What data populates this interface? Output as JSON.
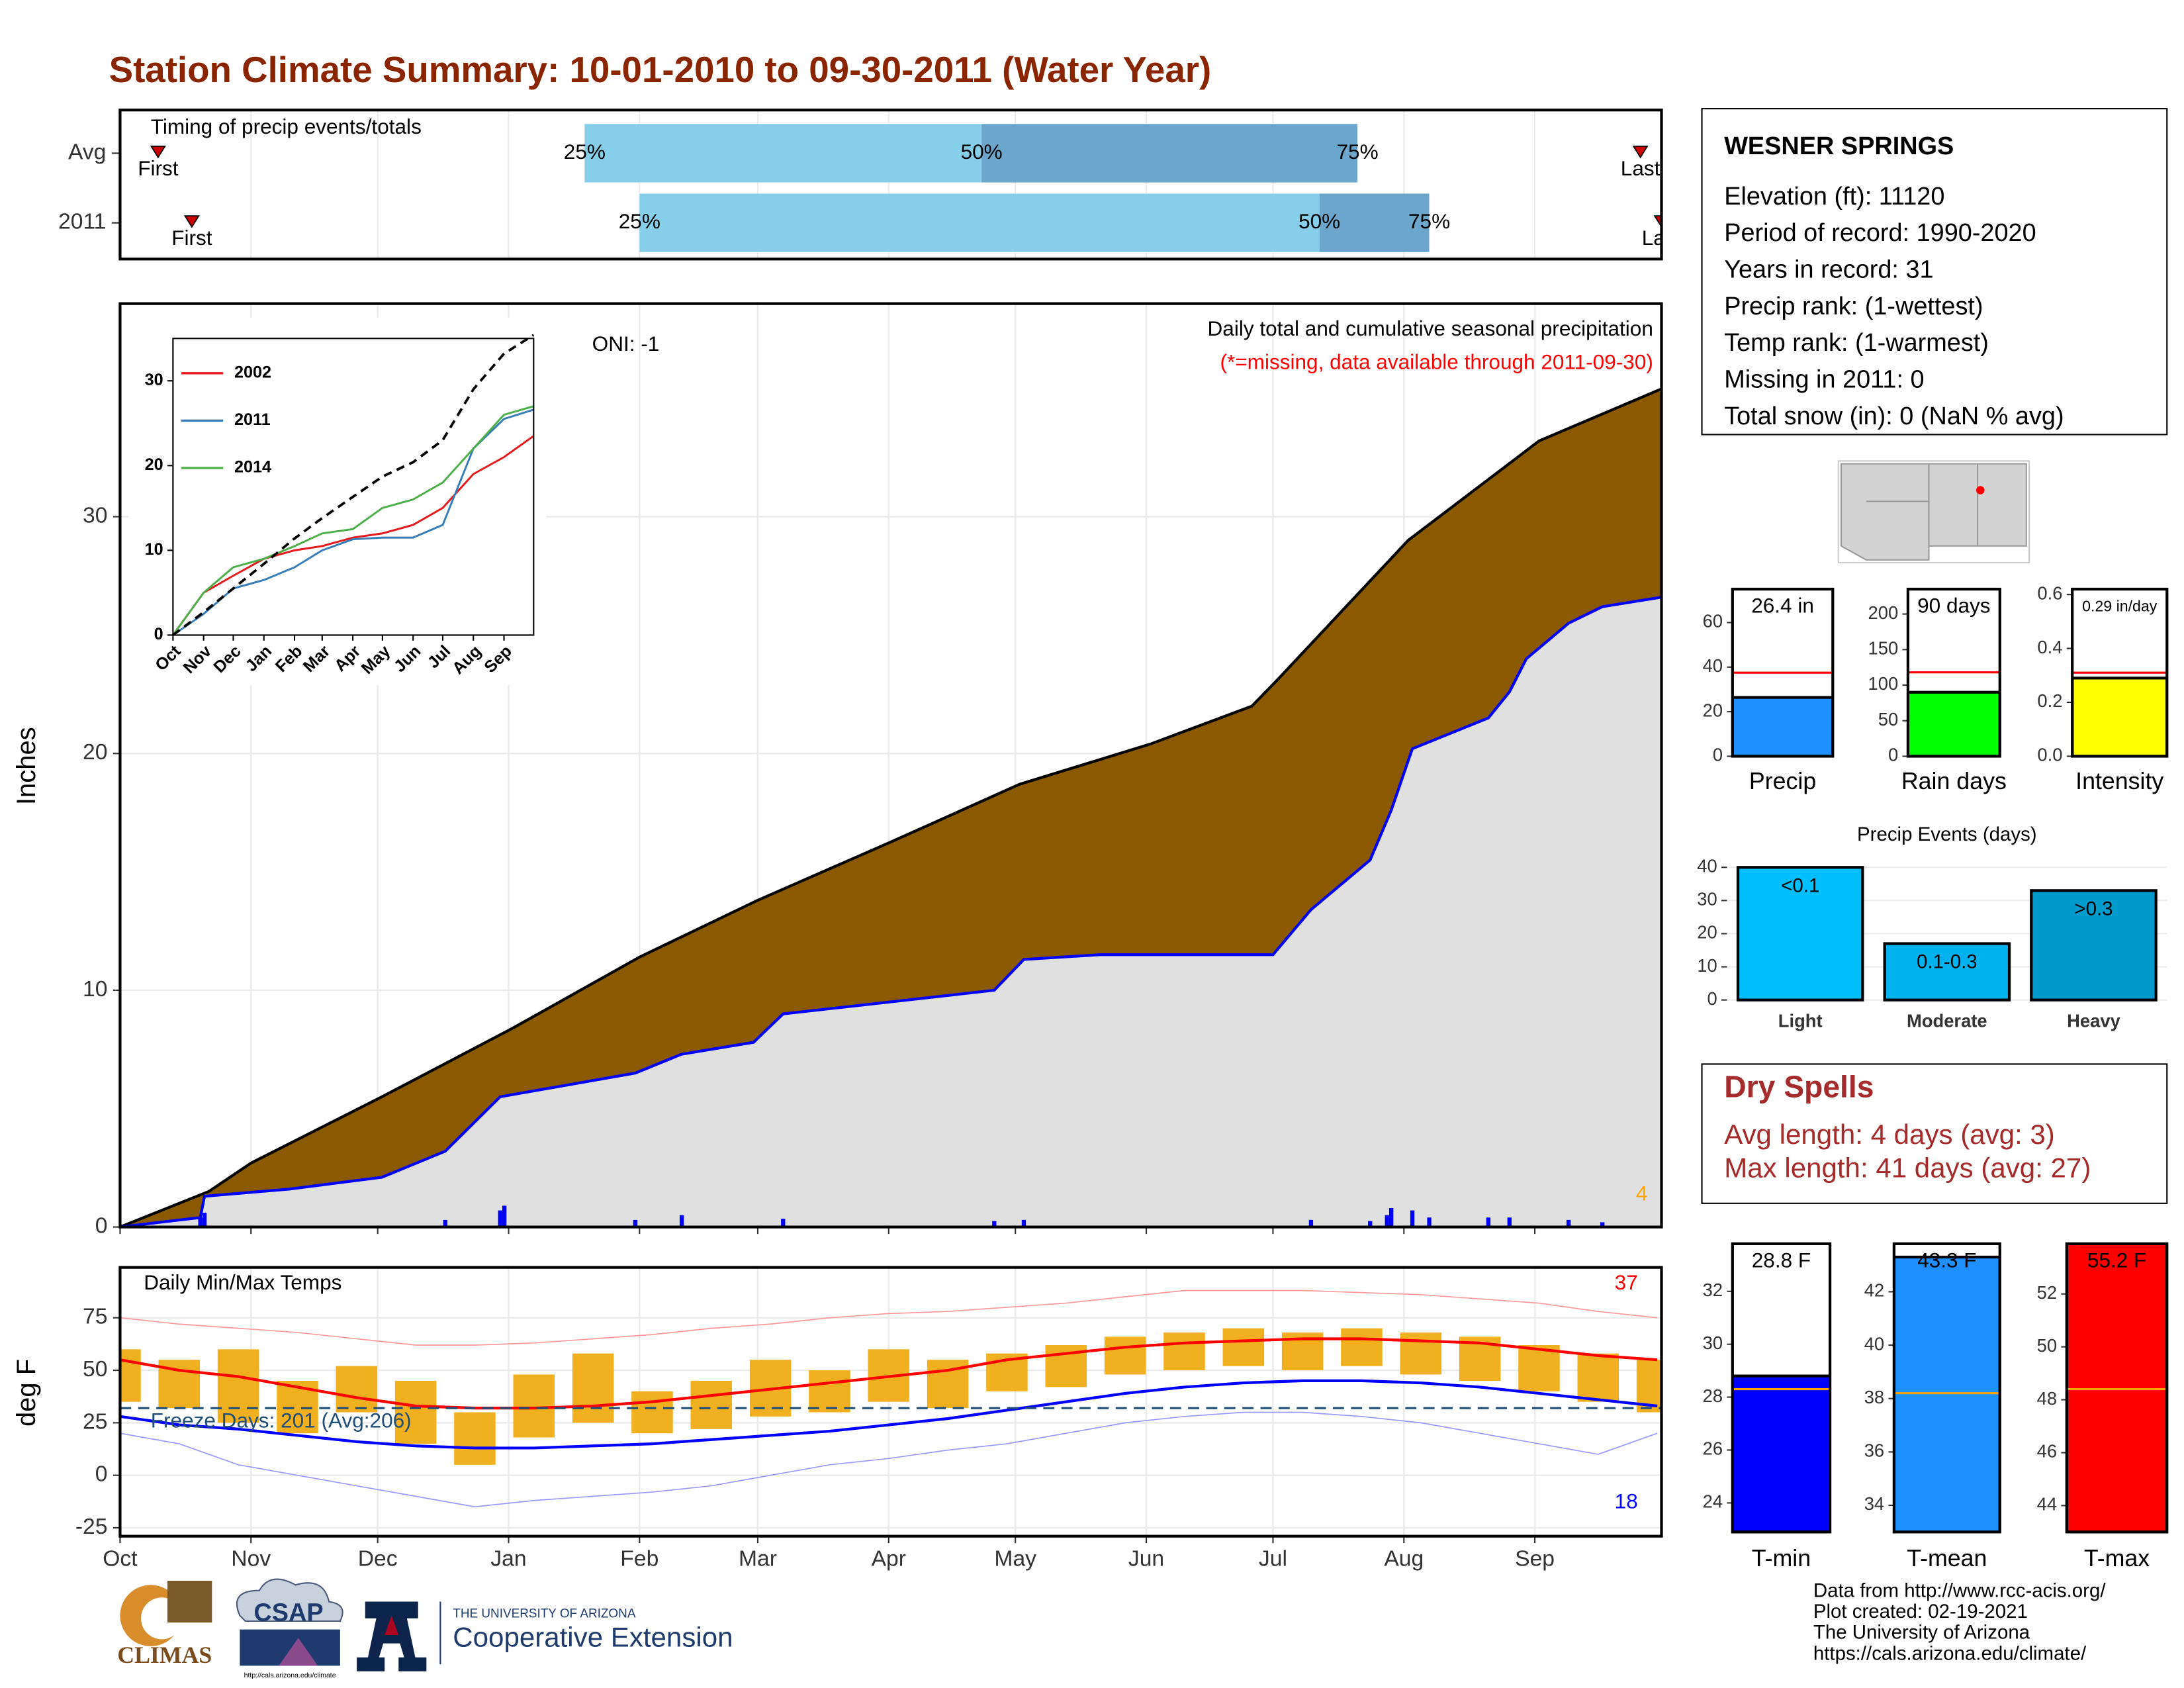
{
  "title": "Station Climate Summary: 10-01-2010 to 09-30-2011 (Water Year)",
  "station_info": {
    "name": "WESNER SPRINGS",
    "lines": [
      "Elevation (ft): 11120",
      "Period of record: 1990-2020",
      "Years in record: 31",
      "Precip rank:  (1-wettest)",
      "Temp rank:  (1-warmest)",
      "Missing in 2011: 0",
      "Total snow (in): 0 (NaN % avg)"
    ]
  },
  "dry_spells": {
    "title": "Dry Spells",
    "lines": [
      "Avg length: 4 days (avg: 3)",
      "Max length: 41 days (avg: 27)"
    ]
  },
  "credits": [
    "Data from http://www.rcc-acis.org/",
    "Plot created: 02-19-2021",
    "The University of Arizona",
    "https://cals.arizona.edu/climate/"
  ],
  "logos": {
    "climas": "CLIMAS",
    "csap": "CSAP",
    "csap_url": "http://cals.arizona.edu/climate",
    "ua": "THE UNIVERSITY OF ARIZONA",
    "extension": "Cooperative Extension"
  },
  "chart_data": [
    {
      "type": "timing",
      "title": "Timing of precip events/totals",
      "categories": [
        "Avg",
        "2011"
      ],
      "xlim": [
        0,
        365
      ],
      "first": [
        9,
        17
      ],
      "first_labels": [
        "First",
        "First"
      ],
      "last": [
        360,
        365
      ],
      "last_labels": [
        "Last",
        "Last"
      ],
      "quartiles": [
        [
          110,
          204,
          293
        ],
        [
          123,
          284,
          310
        ]
      ],
      "quartile_labels": [
        "25%",
        "50%",
        "75%"
      ],
      "bar_colors": [
        "#87ceeb",
        "#6ca6cd"
      ],
      "marker_color": "#cc0000"
    },
    {
      "type": "area",
      "ylabel": "Inches",
      "xlim": [
        0,
        365
      ],
      "ylim": [
        0,
        39
      ],
      "yticks": [
        0,
        10,
        20,
        30
      ],
      "grid": true,
      "annotations": [
        {
          "text": "ONI: -1",
          "color": "#000000"
        },
        {
          "text": "Daily total and cumulative seasonal precipitation",
          "color": "#000000"
        },
        {
          "text": "(*=missing, data available through 2011-09-30)",
          "color": "#ff0000"
        },
        {
          "text": "4",
          "color": "#ffa500"
        }
      ],
      "series": [
        {
          "style": "area",
          "color": "#8b5a00",
          "line_color": "#000000",
          "x": [
            0,
            21,
            31,
            62,
            93,
            123,
            151,
            183,
            213,
            244,
            268,
            274,
            305,
            336,
            365
          ],
          "values": [
            0,
            1.5,
            2.7,
            5.5,
            8.4,
            11.4,
            13.8,
            16.3,
            18.7,
            20.4,
            22.0,
            23.1,
            29.0,
            33.2,
            35.4
          ]
        },
        {
          "style": "area",
          "color": "#e0e0e0",
          "line_color": "#0000ff",
          "x": [
            0,
            19,
            20,
            40,
            62,
            77,
            90,
            122,
            133,
            150,
            157,
            207,
            214,
            232,
            273,
            282,
            296,
            301,
            306,
            324,
            329,
            333,
            343,
            351,
            365
          ],
          "values": [
            0,
            0.4,
            1.3,
            1.6,
            2.1,
            3.2,
            5.5,
            6.5,
            7.3,
            7.8,
            9.0,
            10.0,
            11.3,
            11.5,
            11.5,
            13.4,
            15.5,
            17.6,
            20.2,
            21.5,
            22.6,
            24.0,
            25.5,
            26.2,
            26.6
          ]
        },
        {
          "style": "bar",
          "color": "#0000ff",
          "x": [
            19,
            20,
            77,
            90,
            91,
            122,
            133,
            157,
            207,
            214,
            282,
            296,
            300,
            301,
            306,
            310,
            324,
            329,
            343,
            351
          ],
          "values": [
            0.4,
            0.6,
            0.3,
            0.7,
            0.9,
            0.3,
            0.5,
            0.35,
            0.25,
            0.3,
            0.3,
            0.25,
            0.5,
            0.8,
            0.7,
            0.4,
            0.4,
            0.4,
            0.3,
            0.2
          ]
        }
      ]
    },
    {
      "type": "line",
      "xlim": [
        0,
        365
      ],
      "ylim": [
        0,
        35
      ],
      "yticks": [
        0,
        10,
        20,
        30
      ],
      "legend": "top-left",
      "xticks": [
        {
          "value": 0,
          "label": "Oct"
        },
        {
          "value": 31,
          "label": "Nov"
        },
        {
          "value": 61,
          "label": "Dec"
        },
        {
          "value": 92,
          "label": "Jan"
        },
        {
          "value": 123,
          "label": "Feb"
        },
        {
          "value": 151,
          "label": "Mar"
        },
        {
          "value": 182,
          "label": "Apr"
        },
        {
          "value": 212,
          "label": "May"
        },
        {
          "value": 243,
          "label": "Jun"
        },
        {
          "value": 273,
          "label": "Jul"
        },
        {
          "value": 304,
          "label": "Aug"
        },
        {
          "value": 335,
          "label": "Sep"
        }
      ],
      "series": [
        {
          "name": "2002",
          "color": "#e41a1c",
          "x": [
            0,
            31,
            61,
            92,
            123,
            151,
            182,
            212,
            243,
            273,
            304,
            335,
            365
          ],
          "values": [
            0,
            5,
            7,
            9,
            10,
            10.5,
            11.5,
            12,
            13,
            15,
            19,
            21,
            23.5
          ]
        },
        {
          "name": "2011",
          "color": "#377eb8",
          "x": [
            0,
            31,
            61,
            92,
            123,
            151,
            182,
            212,
            243,
            273,
            304,
            335,
            365
          ],
          "values": [
            0,
            2.5,
            5.5,
            6.5,
            8,
            10,
            11.3,
            11.5,
            11.5,
            13,
            22,
            25.5,
            26.6
          ]
        },
        {
          "name": "2014",
          "color": "#4daf4a",
          "x": [
            0,
            31,
            61,
            92,
            123,
            151,
            182,
            212,
            243,
            273,
            304,
            335,
            365
          ],
          "values": [
            0,
            5,
            8,
            9,
            10.5,
            12,
            12.5,
            15,
            16,
            18,
            22,
            26,
            27
          ]
        },
        {
          "color": "#000000",
          "dash": true,
          "x": [
            0,
            31,
            61,
            92,
            123,
            151,
            182,
            212,
            243,
            273,
            304,
            335,
            365
          ],
          "values": [
            0,
            2.7,
            5.5,
            8.4,
            11.4,
            13.8,
            16.3,
            18.7,
            20.4,
            23,
            29,
            33.2,
            35.4
          ]
        }
      ]
    },
    {
      "type": "bar",
      "categories": [
        "Precip"
      ],
      "values": [
        26.4
      ],
      "value_labels": [
        "26.4 in"
      ],
      "color": "#1e90ff",
      "reference": 37.5,
      "reference_color": "#ff0000",
      "ylim": [
        0,
        75
      ],
      "yticks": [
        0,
        20,
        40,
        60
      ]
    },
    {
      "type": "bar",
      "categories": [
        "Rain days"
      ],
      "values": [
        90
      ],
      "value_labels": [
        "90 days"
      ],
      "color": "#00ff00",
      "reference": 118,
      "reference_color": "#ff0000",
      "ylim": [
        0,
        235
      ],
      "yticks": [
        0,
        50,
        100,
        150,
        200
      ]
    },
    {
      "type": "bar",
      "categories": [
        "Intensity"
      ],
      "values": [
        0.29
      ],
      "value_labels": [
        "0.29 in/day"
      ],
      "color": "#ffff00",
      "reference": 0.31,
      "reference_color": "#ff0000",
      "ylim": [
        0,
        0.62
      ],
      "yticks": [
        {
          "value": 0,
          "label": "0.0"
        },
        0.2,
        0.4,
        0.6
      ]
    },
    {
      "type": "bar",
      "title": "Precip Events (days)",
      "categories": [
        "Light",
        "Moderate",
        "Heavy"
      ],
      "values": [
        40,
        17,
        33
      ],
      "bar_labels": [
        "<0.1",
        "0.1-0.3",
        ">0.3"
      ],
      "colors": [
        "#00bfff",
        "#00b2ee",
        "#009acd"
      ],
      "ylim": [
        0,
        42
      ],
      "yticks": [
        0,
        10,
        20,
        30,
        40
      ],
      "grid": true
    },
    {
      "type": "bar",
      "categories": [
        "T-min"
      ],
      "values": [
        28.8
      ],
      "value_labels": [
        "28.8 F"
      ],
      "color": "#0000ff",
      "reference": 28.3,
      "reference_color": "#ffa500",
      "ylim": [
        22.9,
        33.8
      ],
      "yticks": [
        24,
        26,
        28,
        30,
        32
      ]
    },
    {
      "type": "bar",
      "categories": [
        "T-mean"
      ],
      "values": [
        43.3
      ],
      "value_labels": [
        "43.3 F"
      ],
      "color": "#1e90ff",
      "reference": 38.2,
      "reference_color": "#ffa500",
      "ylim": [
        33,
        43.8
      ],
      "yticks": [
        34,
        36,
        38,
        40,
        42
      ]
    },
    {
      "type": "bar",
      "categories": [
        "T-max"
      ],
      "values": [
        55.2
      ],
      "value_labels": [
        "55.2 F"
      ],
      "color": "#ff0000",
      "reference": 48.4,
      "reference_color": "#ffa500",
      "ylim": [
        43,
        53.9
      ],
      "yticks": [
        44,
        46,
        48,
        50,
        52
      ]
    },
    {
      "type": "range",
      "title": "Daily Min/Max Temps",
      "ylabel": "deg F",
      "xlim": [
        0,
        365
      ],
      "ylim": [
        -29,
        99
      ],
      "yticks": [
        -25,
        0,
        25,
        50,
        75
      ],
      "grid": true,
      "xticks": [
        {
          "value": 0,
          "label": "Oct"
        },
        {
          "value": 31,
          "label": "Nov"
        },
        {
          "value": 61,
          "label": "Dec"
        },
        {
          "value": 92,
          "label": "Jan"
        },
        {
          "value": 123,
          "label": "Feb"
        },
        {
          "value": 151,
          "label": "Mar"
        },
        {
          "value": 182,
          "label": "Apr"
        },
        {
          "value": 212,
          "label": "May"
        },
        {
          "value": 243,
          "label": "Jun"
        },
        {
          "value": 273,
          "label": "Jul"
        },
        {
          "value": 304,
          "label": "Aug"
        },
        {
          "value": 335,
          "label": "Sep"
        }
      ],
      "x": [
        0,
        14,
        28,
        42,
        56,
        70,
        84,
        98,
        112,
        126,
        140,
        154,
        168,
        182,
        196,
        210,
        224,
        238,
        252,
        266,
        280,
        294,
        308,
        322,
        336,
        350,
        364
      ],
      "range": {
        "color": "#f0b020",
        "high": [
          60,
          55,
          60,
          45,
          52,
          45,
          30,
          48,
          58,
          40,
          45,
          55,
          50,
          60,
          55,
          58,
          62,
          66,
          68,
          70,
          68,
          70,
          68,
          66,
          62,
          58,
          55
        ],
        "low": [
          35,
          32,
          25,
          20,
          30,
          15,
          5,
          18,
          25,
          20,
          22,
          28,
          30,
          35,
          32,
          40,
          42,
          48,
          50,
          52,
          50,
          52,
          48,
          45,
          40,
          35,
          30
        ]
      },
      "series": [
        {
          "color": "#ff9999",
          "width": 0.8,
          "values": [
            75,
            72,
            70,
            68,
            65,
            62,
            62,
            63,
            65,
            67,
            70,
            72,
            75,
            77,
            78,
            80,
            82,
            85,
            88,
            88,
            88,
            87,
            86,
            84,
            82,
            78,
            75
          ]
        },
        {
          "color": "#9999ff",
          "width": 0.8,
          "values": [
            20,
            15,
            5,
            0,
            -5,
            -10,
            -15,
            -12,
            -10,
            -8,
            -5,
            0,
            5,
            8,
            12,
            15,
            20,
            25,
            28,
            30,
            30,
            28,
            25,
            20,
            15,
            10,
            20
          ]
        },
        {
          "color": "#ff0000",
          "width": 2,
          "values": [
            55,
            50,
            47,
            42,
            37,
            33,
            32,
            32,
            33,
            35,
            38,
            41,
            44,
            47,
            50,
            55,
            58,
            61,
            63,
            64,
            65,
            65,
            64,
            63,
            60,
            57,
            55
          ]
        },
        {
          "color": "#0000ff",
          "width": 2,
          "values": [
            28,
            24,
            22,
            19,
            16,
            14,
            13,
            13,
            14,
            15,
            17,
            19,
            21,
            24,
            27,
            31,
            35,
            39,
            42,
            44,
            45,
            45,
            44,
            42,
            39,
            36,
            33
          ]
        }
      ],
      "freeze_line": 32,
      "freeze_label": "Freeze Days: 201 (Avg:206)",
      "freeze_color": "#1f4e79",
      "annotations": [
        {
          "text": "37",
          "color": "#ff0000"
        },
        {
          "text": "18",
          "color": "#0000ff"
        }
      ]
    }
  ]
}
